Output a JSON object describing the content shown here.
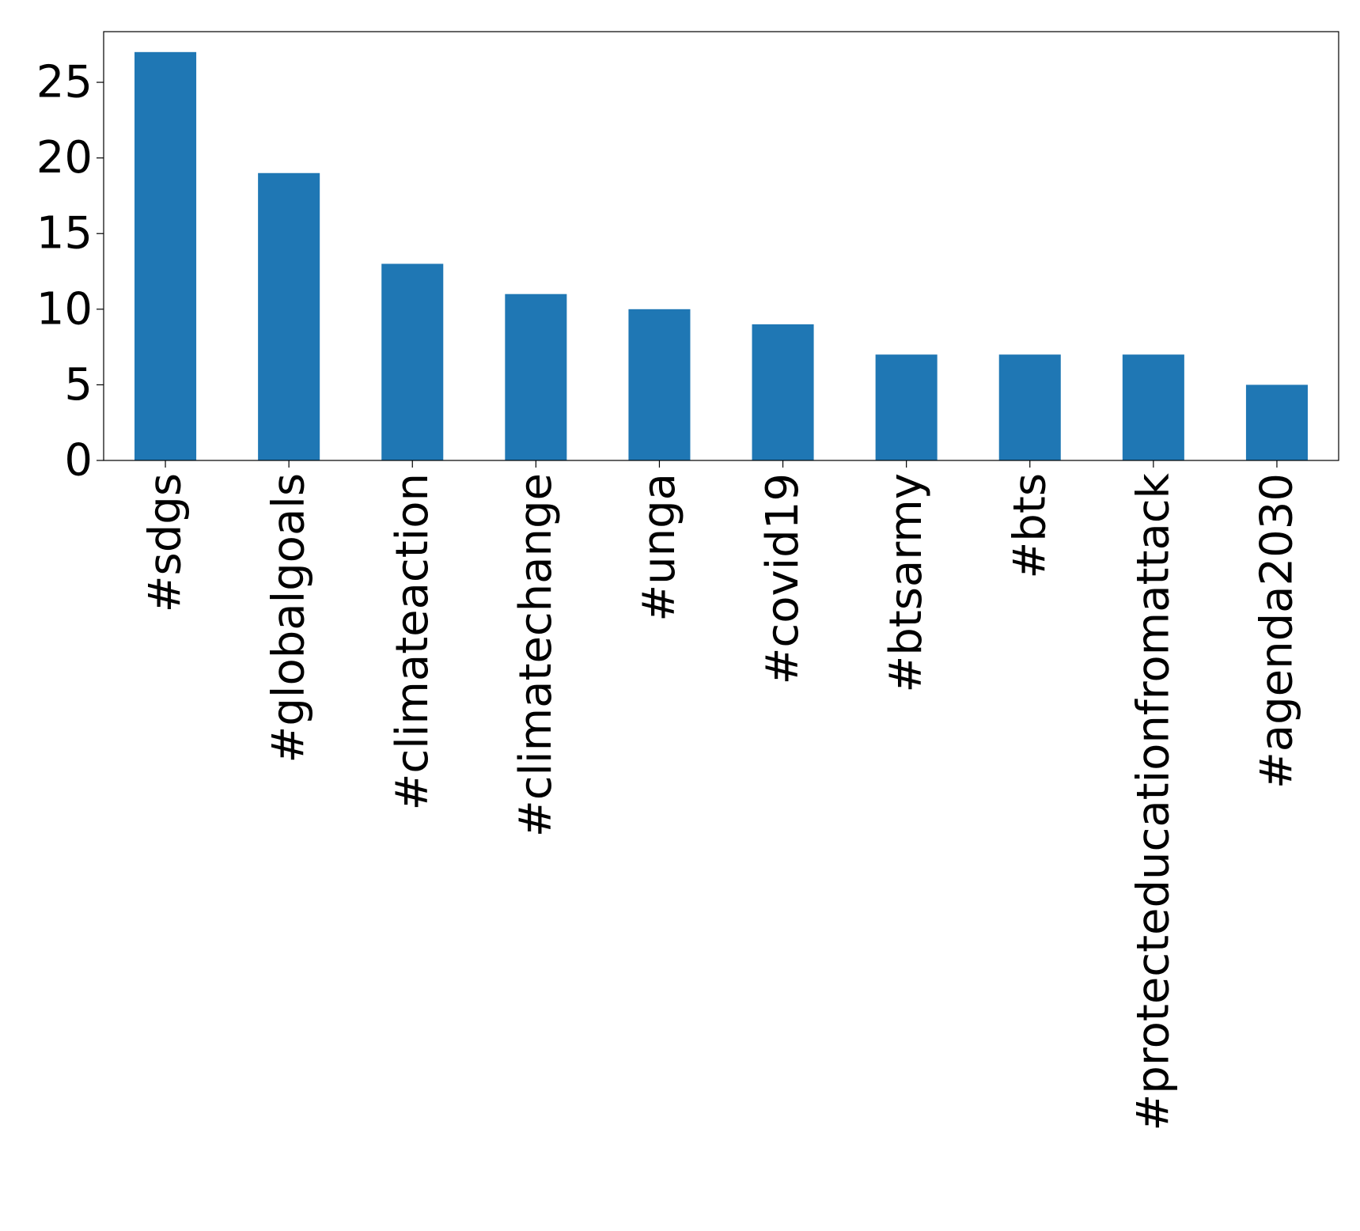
{
  "chart_data": {
    "type": "bar",
    "title": "",
    "xlabel": "",
    "ylabel": "",
    "categories": [
      "#sdgs",
      "#globalgoals",
      "#climateaction",
      "#climatechange",
      "#unga",
      "#covid19",
      "#btsarmy",
      "#bts",
      "#protecteducationfromattack",
      "#agenda2030"
    ],
    "values": [
      27,
      19,
      13,
      11,
      10,
      9,
      7,
      7,
      7,
      5
    ],
    "ylim": [
      0,
      28.35
    ],
    "yticks": [
      0,
      5,
      10,
      15,
      20,
      25
    ],
    "ytick_labels": [
      "0",
      "5",
      "10",
      "15",
      "20",
      "25"
    ],
    "grid": false,
    "legend": false,
    "colors": {
      "bar": "#1f77b4",
      "axis": "#000000",
      "text": "#000000"
    }
  }
}
